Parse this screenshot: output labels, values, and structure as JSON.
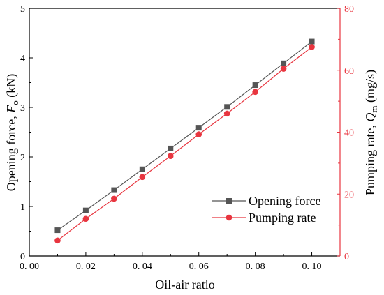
{
  "chart_data": {
    "type": "line",
    "xlabel": "Oil-air ratio",
    "ylabel_left_text": "Opening force, ",
    "ylabel_left_var": "F",
    "ylabel_left_sub": "o",
    "ylabel_left_unit": " (kN)",
    "ylabel_right_text": "Pumping rate, ",
    "ylabel_right_var": "Q",
    "ylabel_right_sub": "m",
    "ylabel_right_unit": " (mg/s)",
    "xlim": [
      0.0,
      0.11
    ],
    "ylim_left": [
      0,
      5
    ],
    "ylim_right": [
      0,
      80
    ],
    "x_ticks": [
      0.0,
      0.02,
      0.04,
      0.06,
      0.08,
      0.1
    ],
    "x_tick_labels": [
      "0. 00",
      "0. 02",
      "0. 04",
      "0. 06",
      "0. 08",
      "0. 10"
    ],
    "y_left_ticks": [
      0,
      1,
      2,
      3,
      4,
      5
    ],
    "y_left_tick_labels": [
      "0",
      "1",
      "2",
      "3",
      "4",
      "5"
    ],
    "y_right_ticks": [
      0,
      20,
      40,
      60,
      80
    ],
    "y_right_tick_labels": [
      "0",
      "20",
      "40",
      "60",
      "80"
    ],
    "grid": false,
    "legend_position": "lower-right",
    "x": [
      0.01,
      0.02,
      0.03,
      0.04,
      0.05,
      0.06,
      0.07,
      0.08,
      0.09,
      0.1
    ],
    "series": [
      {
        "name": "Opening force",
        "axis": "left",
        "marker": "square",
        "color": "#555555",
        "values": [
          0.52,
          0.92,
          1.33,
          1.75,
          2.17,
          2.59,
          3.01,
          3.45,
          3.89,
          4.33
        ]
      },
      {
        "name": "Pumping rate",
        "axis": "right",
        "marker": "circle",
        "color": "#e8353f",
        "values": [
          5.0,
          12.0,
          18.5,
          25.5,
          32.3,
          39.3,
          46.0,
          53.0,
          60.5,
          67.5
        ]
      }
    ],
    "colors": {
      "axis_left": "#000000",
      "axis_right": "#e8353f"
    }
  }
}
